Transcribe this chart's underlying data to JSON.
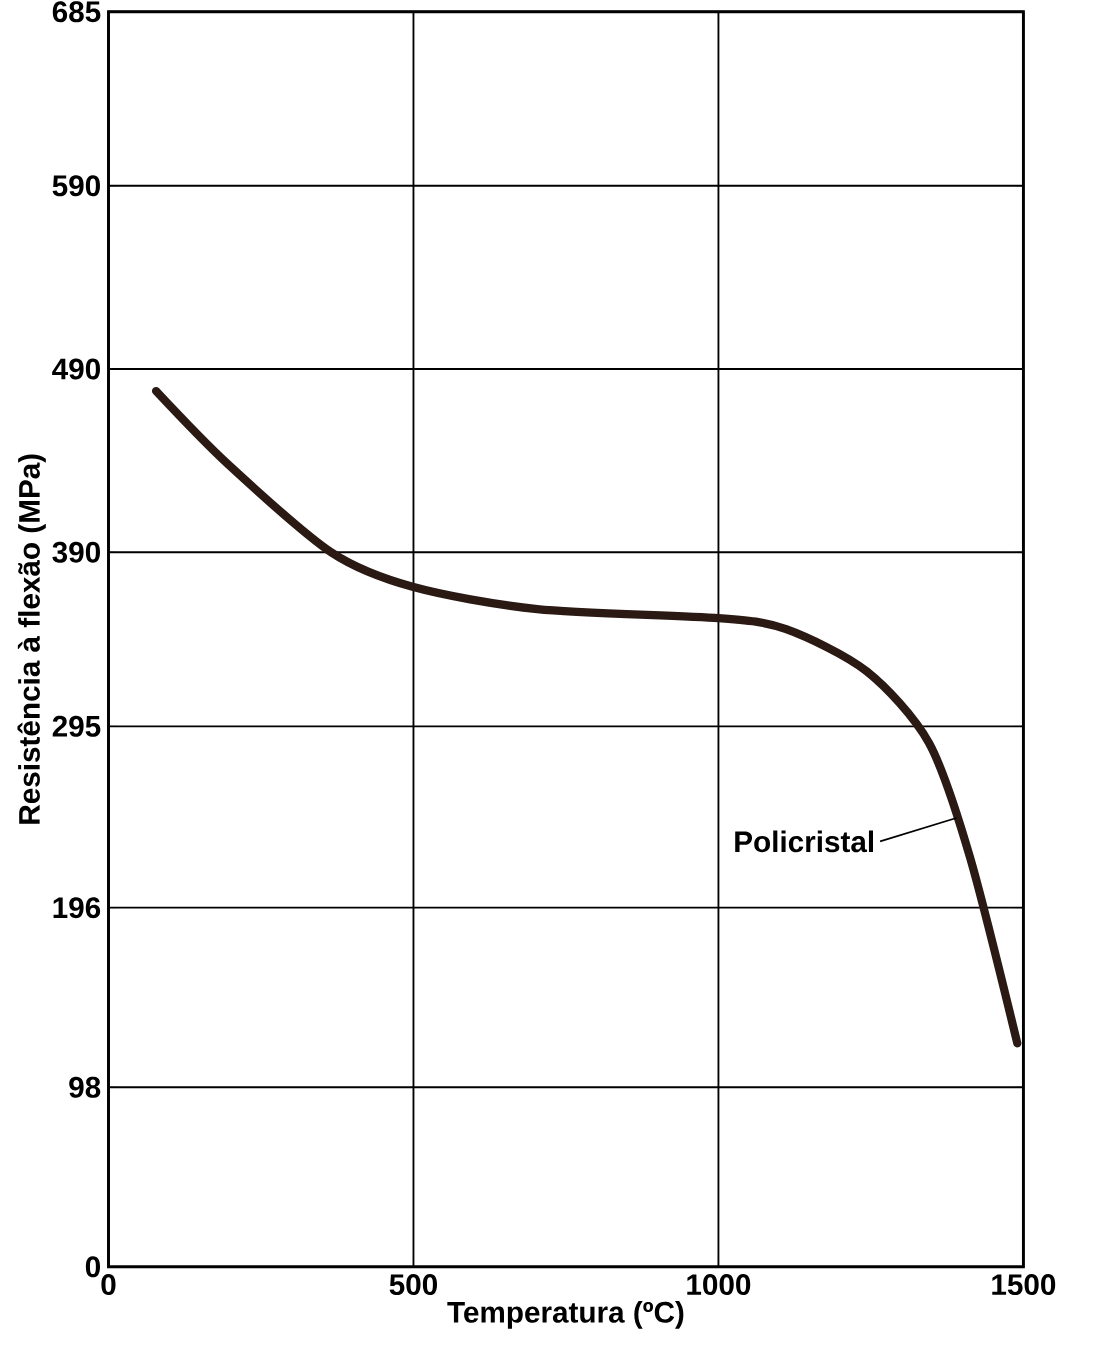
{
  "chart_data": {
    "type": "line",
    "xlabel": "Temperatura (ºC)",
    "ylabel": "Resistência à flexão (MPa)",
    "x": [
      78,
      196,
      365,
      500,
      703,
      1000,
      1111,
      1243,
      1345,
      1412,
      1490
    ],
    "series": [
      {
        "color": "#2b1a14",
        "values": [
          478,
          438,
          390,
          371,
          359,
          354,
          348,
          325,
          286,
          224,
          122
        ]
      }
    ],
    "xlim": [
      0,
      1500
    ],
    "xticks": [
      0,
      500,
      1000,
      1500
    ],
    "ylim": [
      0,
      685
    ],
    "yticks": [
      0,
      98,
      196,
      295,
      390,
      490,
      590,
      685
    ],
    "grid": true,
    "marker": "none",
    "line_style": "solid",
    "annotations": [
      {
        "text": "Policristal",
        "x": 1390,
        "y": 245
      }
    ]
  }
}
